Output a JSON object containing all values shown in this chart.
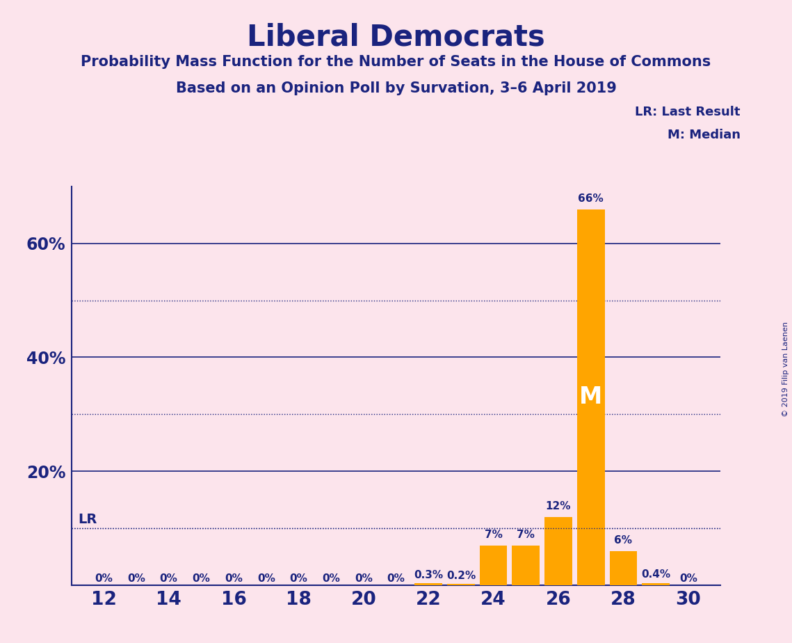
{
  "title": "Liberal Democrats",
  "subtitle1": "Probability Mass Function for the Number of Seats in the House of Commons",
  "subtitle2": "Based on an Opinion Poll by Survation, 3–6 April 2019",
  "copyright": "© 2019 Filip van Laenen",
  "background_color": "#fce4ec",
  "bar_color": "#FFA500",
  "axis_color": "#1a237e",
  "text_color": "#1a237e",
  "seats": [
    12,
    13,
    14,
    15,
    16,
    17,
    18,
    19,
    20,
    21,
    22,
    23,
    24,
    25,
    26,
    27,
    28,
    29,
    30
  ],
  "probabilities": [
    0.0,
    0.0,
    0.0,
    0.0,
    0.0,
    0.0,
    0.0,
    0.0,
    0.0,
    0.0,
    0.3,
    0.2,
    7.0,
    7.0,
    12.0,
    66.0,
    6.0,
    0.4,
    0.0
  ],
  "bar_labels": [
    "0%",
    "0%",
    "0%",
    "0%",
    "0%",
    "0%",
    "0%",
    "0%",
    "0%",
    "0%",
    "0.3%",
    "0.2%",
    "7%",
    "7%",
    "12%",
    "66%",
    "6%",
    "0.4%",
    "0%"
  ],
  "ylim": [
    0,
    70
  ],
  "yticks": [
    0,
    20,
    40,
    60
  ],
  "dotted_yticks": [
    10,
    30,
    50
  ],
  "xlim": [
    11,
    31
  ],
  "xticks": [
    12,
    14,
    16,
    18,
    20,
    22,
    24,
    26,
    28,
    30
  ],
  "lr_value": 10.0,
  "median_seat": 27,
  "median_label": "M",
  "legend_text1": "LR: Last Result",
  "legend_text2": "M: Median"
}
